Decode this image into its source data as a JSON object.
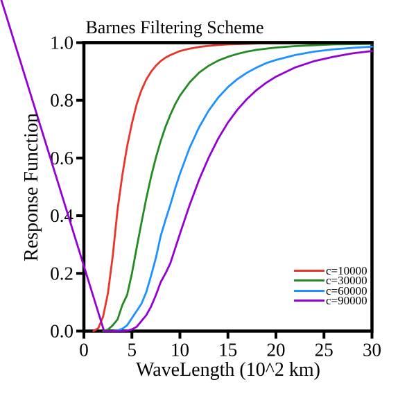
{
  "title": "Barnes Filtering Scheme",
  "chart_data": {
    "type": "line",
    "title": "Barnes Filtering Scheme",
    "xlabel": "WaveLength (10^2 km)",
    "ylabel": "Response Function",
    "xlim": [
      0,
      30
    ],
    "ylim": [
      0.0,
      1.0
    ],
    "xticks": [
      "0",
      "5",
      "10",
      "15",
      "20",
      "25",
      "30"
    ],
    "yticks": [
      "0.0",
      "0.2",
      "0.4",
      "0.6",
      "0.8",
      "1.0"
    ],
    "grid": false,
    "legend_position": "lower right",
    "legend_frame": false,
    "axis_color": "#000000",
    "background_color": "#ffffff",
    "artifact_note": "purple c=90000 series begins with a stray unclipped segment entering from the top-left corner of the figure (outside the axes) and descending to R=0 near wavelength 2",
    "series": [
      {
        "name": "c=10000",
        "color": "#e8352b",
        "x": [
          1,
          1.5,
          2,
          2.5,
          3,
          3.5,
          4,
          4.5,
          5,
          5.5,
          6,
          6.5,
          7,
          7.5,
          8,
          8.5,
          9,
          10,
          11,
          12,
          13,
          14,
          15,
          16,
          18,
          20,
          22,
          24,
          26,
          28,
          30
        ],
        "y": [
          0,
          0.01,
          0.05,
          0.13,
          0.26,
          0.42,
          0.54,
          0.64,
          0.72,
          0.787,
          0.836,
          0.872,
          0.899,
          0.92,
          0.936,
          0.948,
          0.957,
          0.971,
          0.979,
          0.985,
          0.989,
          0.992,
          0.994,
          0.995,
          0.997,
          0.998,
          0.998,
          0.999,
          0.999,
          0.999,
          1.0
        ]
      },
      {
        "name": "c=30000",
        "color": "#228b22",
        "x": [
          2,
          2.5,
          3,
          3.5,
          4,
          4.5,
          5,
          5.5,
          6,
          6.5,
          7,
          7.5,
          8,
          8.5,
          9,
          9.5,
          10,
          11,
          12,
          13,
          14,
          15,
          16,
          17,
          18,
          19,
          20,
          22,
          24,
          26,
          28,
          30
        ],
        "y": [
          0,
          0.005,
          0.02,
          0.04,
          0.09,
          0.125,
          0.2,
          0.29,
          0.377,
          0.46,
          0.535,
          0.602,
          0.659,
          0.708,
          0.75,
          0.786,
          0.816,
          0.862,
          0.896,
          0.92,
          0.938,
          0.951,
          0.961,
          0.969,
          0.975,
          0.979,
          0.983,
          0.988,
          0.991,
          0.994,
          0.995,
          0.996
        ]
      },
      {
        "name": "c=60000",
        "color": "#1e90ff",
        "x": [
          3,
          3.5,
          4,
          4.5,
          5,
          5.5,
          6,
          6.5,
          7,
          7.5,
          8,
          8.5,
          9,
          9.5,
          10,
          11,
          12,
          13,
          14,
          15,
          16,
          17,
          18,
          19,
          20,
          22,
          24,
          26,
          28,
          30
        ],
        "y": [
          0,
          0.002,
          0.008,
          0.02,
          0.045,
          0.07,
          0.095,
          0.135,
          0.192,
          0.254,
          0.33,
          0.385,
          0.438,
          0.494,
          0.545,
          0.635,
          0.707,
          0.765,
          0.81,
          0.846,
          0.874,
          0.896,
          0.914,
          0.929,
          0.94,
          0.957,
          0.969,
          0.977,
          0.982,
          0.986
        ]
      },
      {
        "name": "c=90000",
        "color": "#9400d3",
        "x": [
          -8.6,
          2.1,
          3,
          4,
          4.5,
          5,
          5.5,
          6,
          6.5,
          7,
          7.5,
          8,
          8.5,
          9,
          9.5,
          10,
          11,
          12,
          13,
          14,
          15,
          16,
          17,
          18,
          19,
          20,
          22,
          24,
          26,
          28,
          30
        ],
        "y": [
          1.148,
          0,
          0,
          0,
          0.001,
          0.006,
          0.015,
          0.035,
          0.055,
          0.085,
          0.125,
          0.17,
          0.2,
          0.235,
          0.286,
          0.337,
          0.436,
          0.525,
          0.602,
          0.668,
          0.723,
          0.768,
          0.805,
          0.836,
          0.861,
          0.882,
          0.914,
          0.936,
          0.951,
          0.963,
          0.971
        ]
      }
    ]
  }
}
